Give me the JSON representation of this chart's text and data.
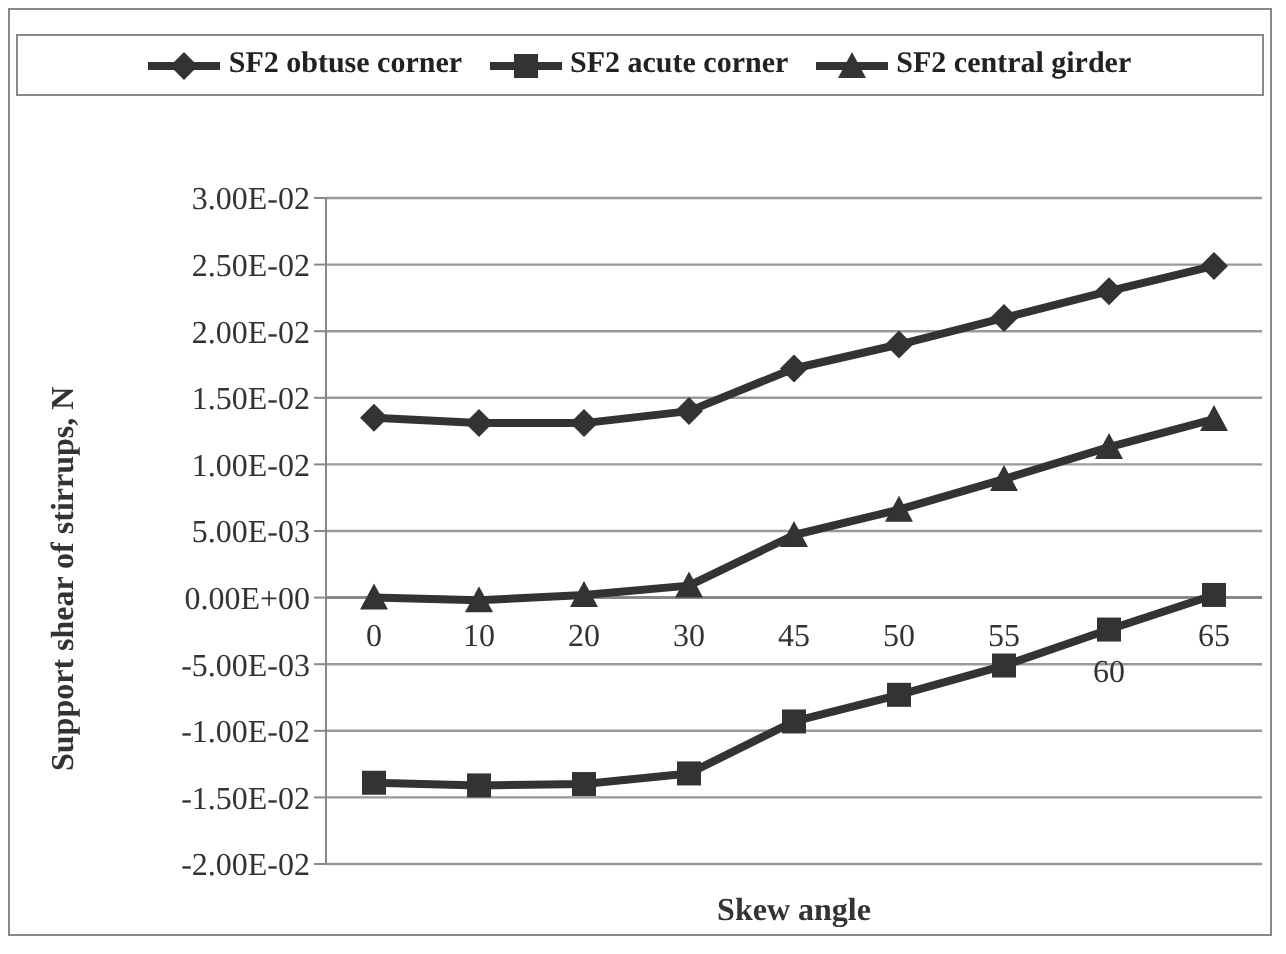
{
  "chart_data": {
    "type": "line",
    "xlabel": "Skew angle",
    "ylabel": "Support shear of stirrups, N",
    "categories": [
      "0",
      "10",
      "20",
      "30",
      "45",
      "50",
      "55",
      "60",
      "65"
    ],
    "series": [
      {
        "name": "SF2 obtuse corner",
        "color": "#333333",
        "marker": "diamond",
        "values": [
          0.0135,
          0.0131,
          0.0131,
          0.014,
          0.0172,
          0.019,
          0.021,
          0.023,
          0.0249
        ]
      },
      {
        "name": "SF2 acute corner",
        "color": "#333333",
        "marker": "square",
        "values": [
          -0.0139,
          -0.0141,
          -0.014,
          -0.0132,
          -0.0093,
          -0.0073,
          -0.0051,
          -0.0024,
          0.0002
        ]
      },
      {
        "name": "SF2 central girder",
        "color": "#333333",
        "marker": "triangle",
        "values": [
          0,
          -0.0002,
          0.0002,
          0.0009,
          0.0047,
          0.0066,
          0.0089,
          0.0113,
          0.0134
        ]
      }
    ],
    "ylim": [
      -0.02,
      0.03
    ],
    "yticks": [
      {
        "value": -0.02,
        "label": "-2.00E-02"
      },
      {
        "value": -0.015,
        "label": "-1.50E-02"
      },
      {
        "value": -0.01,
        "label": "-1.00E-02"
      },
      {
        "value": -0.005,
        "label": "-5.00E-03"
      },
      {
        "value": 0,
        "label": "0.00E+00"
      },
      {
        "value": 0.005,
        "label": "5.00E-03"
      },
      {
        "value": 0.01,
        "label": "1.00E-02"
      },
      {
        "value": 0.015,
        "label": "1.50E-02"
      },
      {
        "value": 0.02,
        "label": "2.00E-02"
      },
      {
        "value": 0.025,
        "label": "2.50E-02"
      },
      {
        "value": 0.03,
        "label": "3.00E-02"
      }
    ],
    "grid": "y",
    "legend": "top",
    "line_style": "solid"
  }
}
